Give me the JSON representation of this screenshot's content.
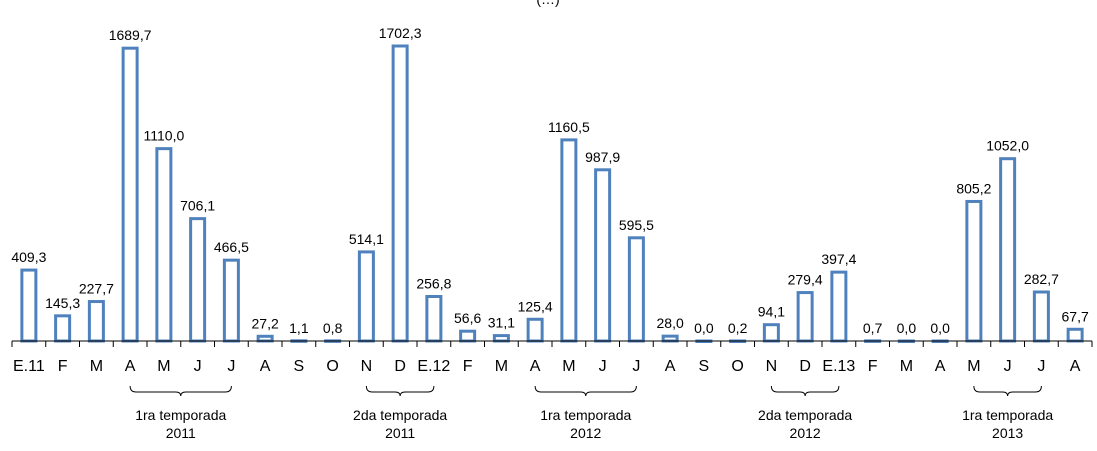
{
  "chart_data": {
    "type": "bar",
    "title": "(…)",
    "categories": [
      "E.11",
      "F",
      "M",
      "A",
      "M",
      "J",
      "J",
      "A",
      "S",
      "O",
      "N",
      "D",
      "E.12",
      "F",
      "M",
      "A",
      "M",
      "J",
      "J",
      "A",
      "S",
      "O",
      "N",
      "D",
      "E.13",
      "F",
      "M",
      "A",
      "M",
      "J",
      "J",
      "A"
    ],
    "values": [
      409.3,
      145.3,
      227.7,
      1689.7,
      1110.0,
      706.1,
      466.5,
      27.2,
      1.1,
      0.8,
      514.1,
      1702.3,
      256.8,
      56.6,
      31.1,
      125.4,
      1160.5,
      987.9,
      595.5,
      28.0,
      0.0,
      0.2,
      94.1,
      279.4,
      397.4,
      0.7,
      0.0,
      0.0,
      805.2,
      1052.0,
      282.7,
      67.7
    ],
    "value_labels": [
      "409,3",
      "145,3",
      "227,7",
      "1689,7",
      "1110,0",
      "706,1",
      "466,5",
      "27,2",
      "1,1",
      "0,8",
      "514,1",
      "1702,3",
      "256,8",
      "56,6",
      "31,1",
      "125,4",
      "1160,5",
      "987,9",
      "595,5",
      "28,0",
      "0,0",
      "0,2",
      "94,1",
      "279,4",
      "397,4",
      "0,7",
      "0,0",
      "0,0",
      "805,2",
      "1052,0",
      "282,7",
      "67,7"
    ],
    "groups": [
      {
        "line1": "1ra  temporada",
        "line2": "2011",
        "start": 3,
        "end": 6
      },
      {
        "line1": "2da  temporada",
        "line2": "2011",
        "start": 10,
        "end": 12
      },
      {
        "line1": "1ra  temporada",
        "line2": "2012",
        "start": 15,
        "end": 18
      },
      {
        "line1": "2da  temporada",
        "line2": "2012",
        "start": 22,
        "end": 24
      },
      {
        "line1": "1ra  temporada",
        "line2": "2013",
        "start": 28,
        "end": 30
      }
    ],
    "ylim": [
      0,
      1760
    ],
    "grid": false,
    "legend": "none",
    "bar_color": "#4f81bd",
    "xlabel": "",
    "ylabel": ""
  }
}
